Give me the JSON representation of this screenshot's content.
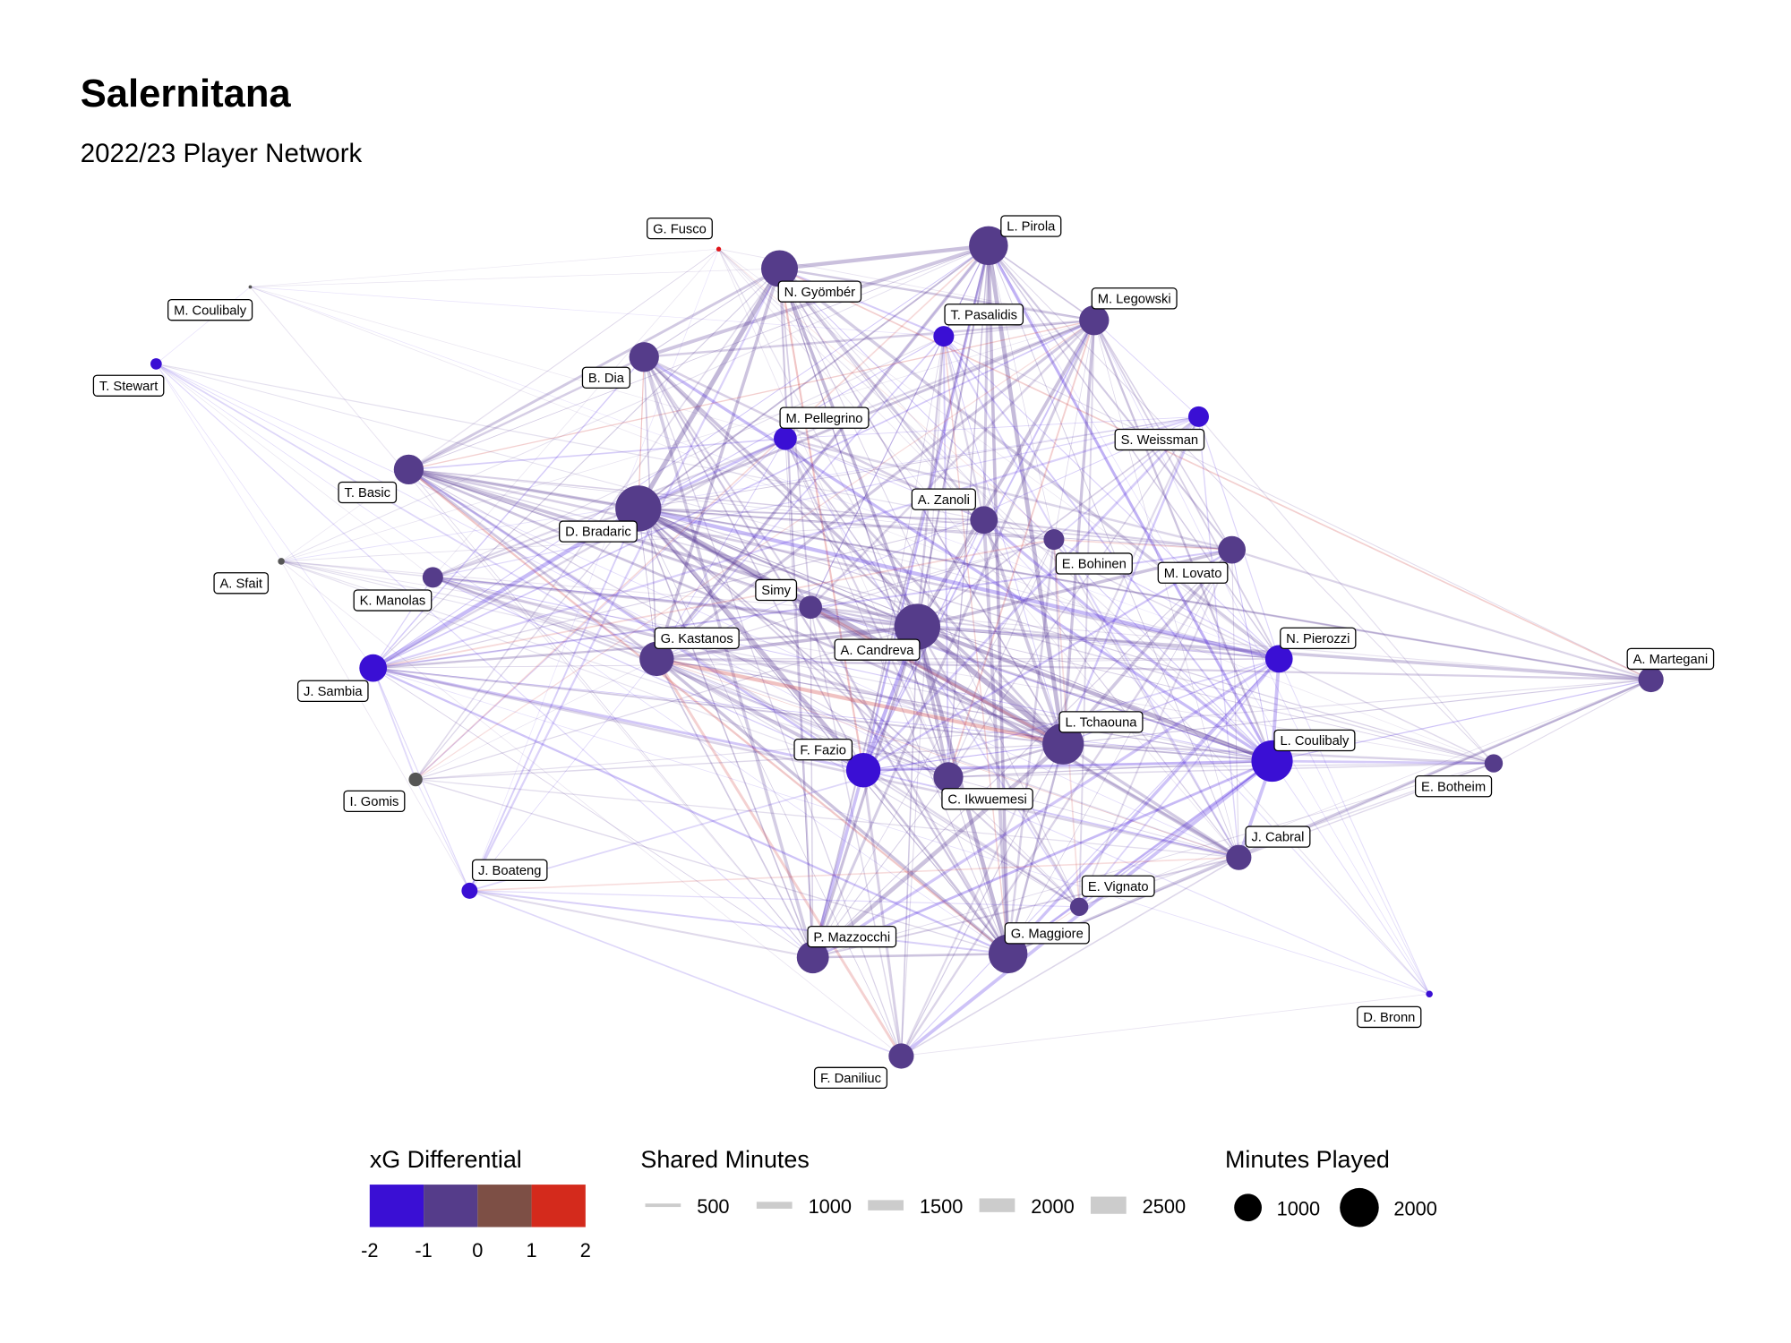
{
  "title": "Salernitana",
  "subtitle": "2022/23 Player Network",
  "colors": {
    "blue": "#3a0fd4",
    "purple": "#553c8a",
    "gray": "#555555",
    "red": "#e0151a"
  },
  "nodes": [
    {
      "name": "G. Fusco",
      "minutes": 30,
      "xg": 1.8,
      "color": "#e0151a"
    },
    {
      "name": "L. Pirola",
      "minutes": 2000,
      "xg": -1.0,
      "color": "#553c8a"
    },
    {
      "name": "N. Gyömbér",
      "minutes": 1780,
      "xg": -1.0,
      "color": "#553c8a"
    },
    {
      "name": "M. Coulibaly",
      "minutes": 15,
      "xg": 0,
      "color": "#555555"
    },
    {
      "name": "T. Pasalidis",
      "minutes": 560,
      "xg": -1.8,
      "color": "#3a0fd4"
    },
    {
      "name": "M. Legowski",
      "minutes": 1170,
      "xg": -1.0,
      "color": "#553c8a"
    },
    {
      "name": "T. Stewart",
      "minutes": 170,
      "xg": -1.9,
      "color": "#3a0fd4"
    },
    {
      "name": "B. Dia",
      "minutes": 1170,
      "xg": -1.0,
      "color": "#553c8a"
    },
    {
      "name": "M. Pellegrino",
      "minutes": 700,
      "xg": -1.8,
      "color": "#3a0fd4"
    },
    {
      "name": "S. Weissman",
      "minutes": 560,
      "xg": -1.8,
      "color": "#3a0fd4"
    },
    {
      "name": "T. Basic",
      "minutes": 1170,
      "xg": -1.2,
      "color": "#553c8a"
    },
    {
      "name": "D. Bradaric",
      "minutes": 2780,
      "xg": -1.0,
      "color": "#553c8a"
    },
    {
      "name": "A. Zanoli",
      "minutes": 1000,
      "xg": -1.0,
      "color": "#553c8a"
    },
    {
      "name": "E. Bohinen",
      "minutes": 560,
      "xg": -1.0,
      "color": "#553c8a"
    },
    {
      "name": "M. Lovato",
      "minutes": 1000,
      "xg": -1.0,
      "color": "#553c8a"
    },
    {
      "name": "A. Sfait",
      "minutes": 60,
      "xg": 0,
      "color": "#555555"
    },
    {
      "name": "K. Manolas",
      "minutes": 560,
      "xg": -1.0,
      "color": "#553c8a"
    },
    {
      "name": "Simy",
      "minutes": 700,
      "xg": -1.0,
      "color": "#553c8a"
    },
    {
      "name": "A. Candreva",
      "minutes": 2780,
      "xg": -1.0,
      "color": "#553c8a"
    },
    {
      "name": "G. Kastanos",
      "minutes": 1560,
      "xg": -1.0,
      "color": "#553c8a"
    },
    {
      "name": "N. Pierozzi",
      "minutes": 1000,
      "xg": -1.6,
      "color": "#3a0fd4"
    },
    {
      "name": "A. Martegani",
      "minutes": 840,
      "xg": -1.0,
      "color": "#553c8a"
    },
    {
      "name": "J. Sambia",
      "minutes": 1000,
      "xg": -1.8,
      "color": "#3a0fd4"
    },
    {
      "name": "L. Tchaouna",
      "minutes": 2250,
      "xg": -1.0,
      "color": "#553c8a"
    },
    {
      "name": "L. Coulibaly",
      "minutes": 2250,
      "xg": -1.5,
      "color": "#3a0fd4"
    },
    {
      "name": "F. Fazio",
      "minutes": 1560,
      "xg": -1.6,
      "color": "#3a0fd4"
    },
    {
      "name": "C. Ikwuemesi",
      "minutes": 1170,
      "xg": -1.0,
      "color": "#553c8a"
    },
    {
      "name": "E. Botheim",
      "minutes": 440,
      "xg": -1.0,
      "color": "#553c8a"
    },
    {
      "name": "I. Gomis",
      "minutes": 250,
      "xg": 0,
      "color": "#555555"
    },
    {
      "name": "J. Cabral",
      "minutes": 840,
      "xg": -1.0,
      "color": "#553c8a"
    },
    {
      "name": "J. Boateng",
      "minutes": 340,
      "xg": -1.6,
      "color": "#3a0fd4"
    },
    {
      "name": "E. Vignato",
      "minutes": 440,
      "xg": -1.0,
      "color": "#553c8a"
    },
    {
      "name": "P. Mazzocchi",
      "minutes": 1360,
      "xg": -1.0,
      "color": "#553c8a"
    },
    {
      "name": "G. Maggiore",
      "minutes": 2000,
      "xg": -1.0,
      "color": "#553c8a"
    },
    {
      "name": "D. Bronn",
      "minutes": 60,
      "xg": -2.0,
      "color": "#3a0fd4"
    },
    {
      "name": "F. Daniliuc",
      "minutes": 840,
      "xg": -1.0,
      "color": "#553c8a"
    }
  ],
  "legend": {
    "xg": {
      "title": "xG Differential",
      "ticks": [
        "-2",
        "-1",
        "0",
        "1",
        "2"
      ],
      "swatches": [
        "#3a0fd4",
        "#553c8a",
        "#7d4f45",
        "#d42a1c"
      ]
    },
    "shared": {
      "title": "Shared Minutes",
      "items": [
        "500",
        "1000",
        "1500",
        "2000",
        "2500"
      ]
    },
    "played": {
      "title": "Minutes Played",
      "items": [
        "1000",
        "2000"
      ]
    }
  }
}
